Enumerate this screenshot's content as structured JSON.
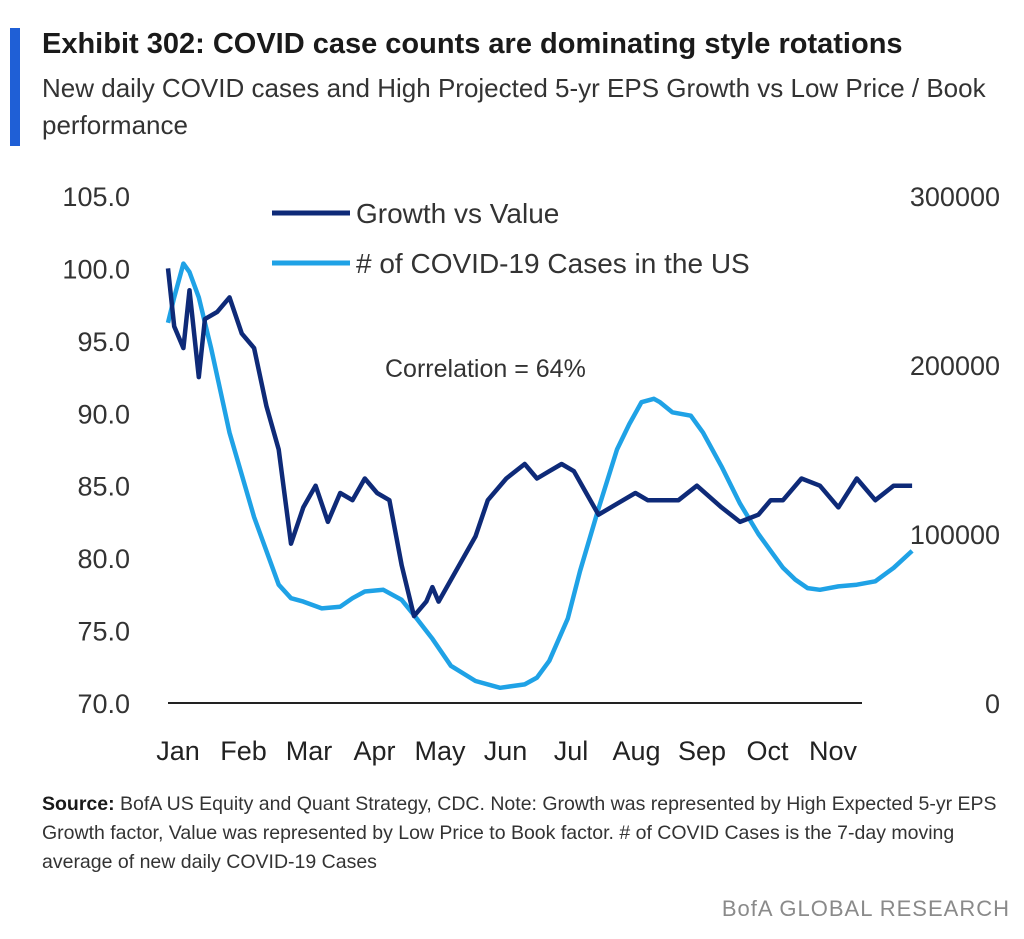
{
  "header": {
    "title": "Exhibit 302: COVID case counts are dominating style rotations",
    "subtitle": "New daily COVID cases and High Projected 5-yr EPS Growth vs Low Price / Book performance"
  },
  "footer": {
    "source_label": "Source:",
    "source_text": " BofA US Equity and Quant Strategy, CDC. Note: Growth was represented by High Expected 5-yr EPS Growth factor, Value was represented by Low Price to Book factor. # of COVID Cases is the 7-day moving average of new daily COVID-19 Cases",
    "brand": "BofA GLOBAL RESEARCH"
  },
  "colors": {
    "accent": "#1f5fd6",
    "growth": "#0e2a78",
    "covid": "#1fa2e6"
  },
  "chart_data": {
    "type": "line",
    "annotation": "Correlation  = 64%",
    "x_labels": [
      "Jan",
      "Feb",
      "Mar",
      "Apr",
      "May",
      "Jun",
      "Jul",
      "Aug",
      "Sep",
      "Oct",
      "Nov"
    ],
    "left_axis": {
      "ylim": [
        70,
        105
      ],
      "ticks": [
        "105.0",
        "100.0",
        "95.0",
        "90.0",
        "85.0",
        "80.0",
        "75.0",
        "70.0"
      ]
    },
    "right_axis": {
      "ylim": [
        0,
        300000
      ],
      "ticks": [
        "300000",
        "200000",
        "100000",
        "0"
      ]
    },
    "grid": false,
    "legend_position": "top-center",
    "series": [
      {
        "name": "Growth vs Value",
        "axis": "left",
        "x": [
          0.0,
          0.1,
          0.25,
          0.35,
          0.5,
          0.6,
          0.8,
          1.0,
          1.2,
          1.4,
          1.6,
          1.8,
          2.0,
          2.2,
          2.4,
          2.6,
          2.8,
          3.0,
          3.2,
          3.4,
          3.6,
          3.8,
          4.0,
          4.2,
          4.3,
          4.4,
          4.6,
          4.8,
          5.0,
          5.2,
          5.5,
          5.8,
          6.0,
          6.2,
          6.4,
          6.6,
          6.8,
          7.0,
          7.2,
          7.4,
          7.6,
          7.8,
          8.0,
          8.3,
          8.6,
          9.0,
          9.3,
          9.6,
          9.8,
          10.0,
          10.3,
          10.6,
          10.9,
          11.2,
          11.5,
          11.8,
          12.1
        ],
        "values": [
          100.0,
          96.0,
          94.5,
          98.5,
          92.5,
          96.5,
          97.0,
          98.0,
          95.5,
          94.5,
          90.5,
          87.5,
          81.0,
          83.5,
          85.0,
          82.5,
          84.5,
          84.0,
          85.5,
          84.5,
          84.0,
          79.5,
          76.0,
          77.0,
          78.0,
          77.0,
          78.5,
          80.0,
          81.5,
          84.0,
          85.5,
          86.5,
          85.5,
          86.0,
          86.5,
          86.0,
          84.5,
          83.0,
          83.5,
          84.0,
          84.5,
          84.0,
          84.0,
          84.0,
          85.0,
          83.5,
          82.5,
          83.0,
          84.0,
          84.0,
          85.5,
          85.0,
          83.5,
          85.5,
          84.0,
          85.0,
          85.0
        ]
      },
      {
        "name": "# of COVID-19 Cases in the US",
        "axis": "right",
        "x": [
          0.0,
          0.1,
          0.25,
          0.35,
          0.5,
          0.7,
          1.0,
          1.4,
          1.8,
          2.0,
          2.2,
          2.5,
          2.8,
          3.0,
          3.2,
          3.5,
          3.8,
          4.0,
          4.3,
          4.6,
          5.0,
          5.4,
          5.8,
          6.0,
          6.2,
          6.5,
          6.7,
          7.0,
          7.3,
          7.5,
          7.7,
          7.9,
          8.0,
          8.2,
          8.5,
          8.7,
          9.0,
          9.3,
          9.6,
          9.8,
          10.0,
          10.2,
          10.4,
          10.6,
          10.9,
          11.2,
          11.5,
          11.8,
          12.1
        ],
        "values": [
          225000,
          240000,
          260000,
          255000,
          240000,
          210000,
          160000,
          110000,
          70000,
          62000,
          60000,
          56000,
          57000,
          62000,
          66000,
          67000,
          61000,
          52000,
          38000,
          22000,
          13000,
          9000,
          11000,
          15000,
          25000,
          50000,
          78000,
          115000,
          150000,
          165000,
          178000,
          180000,
          178000,
          172000,
          170000,
          160000,
          140000,
          118000,
          100000,
          90000,
          80000,
          73000,
          68000,
          67000,
          69000,
          70000,
          72000,
          80000,
          90000
        ]
      }
    ]
  }
}
